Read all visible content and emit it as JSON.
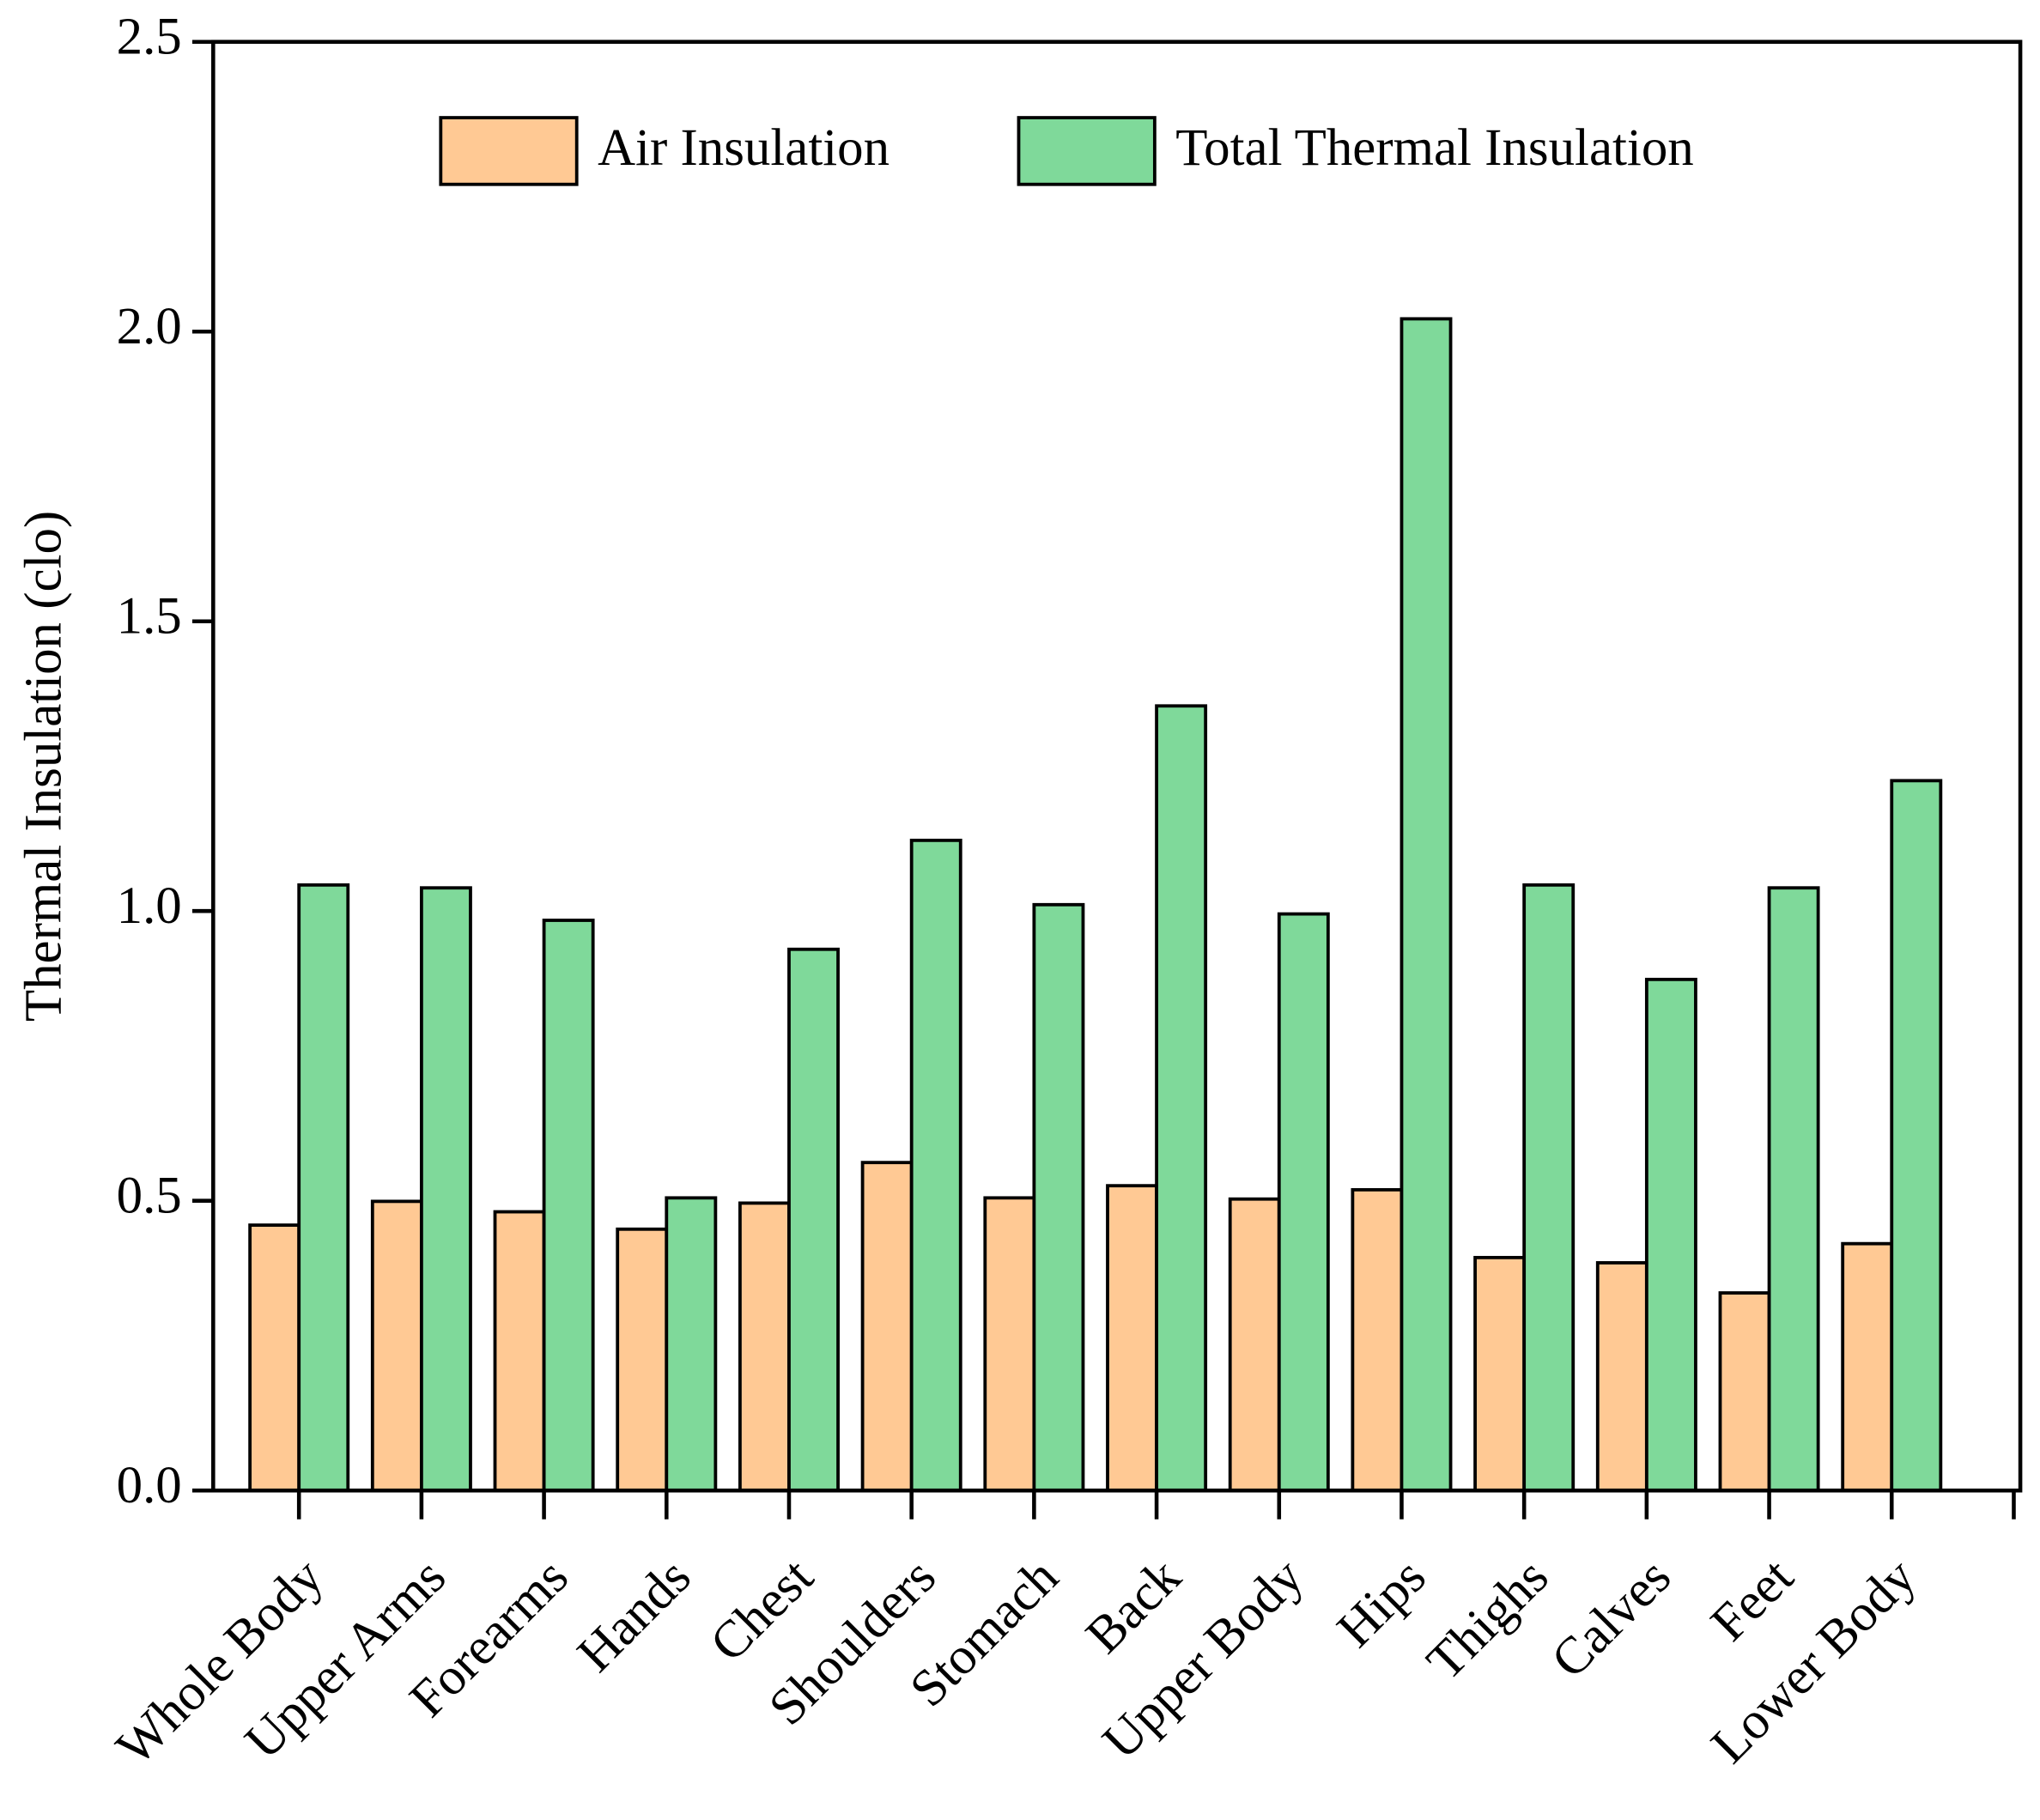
{
  "chart_data": {
    "type": "bar",
    "y_label": "Thermal Insulation (clo)",
    "categories": [
      "Whole Body",
      "Upper Arms",
      "Forearms",
      "Hands",
      "Chest",
      "Shoulders",
      "Stomach",
      "Back",
      "Upper Body",
      "Hips",
      "Thighs",
      "Calves",
      "Feet",
      "Lower Body"
    ],
    "series": [
      {
        "name": "Air Insulation",
        "color": "#ffc994",
        "values": [
          0.458,
          0.499,
          0.481,
          0.451,
          0.496,
          0.566,
          0.505,
          0.526,
          0.503,
          0.519,
          0.402,
          0.393,
          0.341,
          0.426
        ]
      },
      {
        "name": "Total Thermal Insulation",
        "color": "#7fd99a",
        "values": [
          1.045,
          1.04,
          0.984,
          0.505,
          0.934,
          1.122,
          1.011,
          1.354,
          0.995,
          2.022,
          1.045,
          0.882,
          1.04,
          1.225
        ]
      }
    ],
    "ylim": [
      0,
      2.5
    ],
    "yticks": [
      {
        "value": 0,
        "label": "0.0"
      },
      0.5,
      {
        "value": 1,
        "label": "1.0"
      },
      1.5,
      {
        "value": 2,
        "label": "2.0"
      },
      2.5
    ],
    "legend": "top",
    "grid": false
  }
}
